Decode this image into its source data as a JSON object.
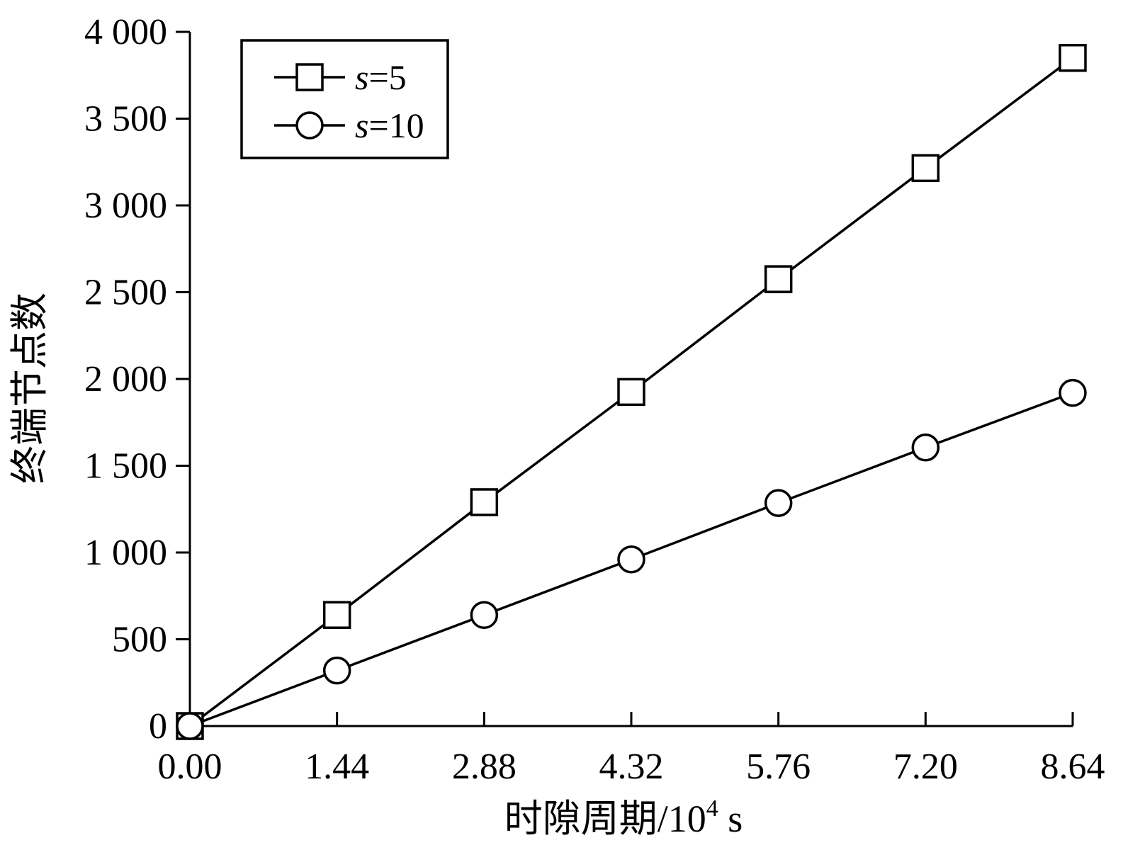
{
  "chart_data": {
    "type": "line",
    "title": "",
    "xlabel": "时隙周期/10",
    "xlabel_sup": "4",
    "xlabel_unit": " s",
    "ylabel": "终端节点数",
    "x": [
      0.0,
      1.44,
      2.88,
      4.32,
      5.76,
      7.2,
      8.64
    ],
    "x_tick_labels": [
      "0.00",
      "1.44",
      "2.88",
      "4.32",
      "5.76",
      "7.20",
      "8.64"
    ],
    "xlim": [
      0,
      8.64
    ],
    "ylim": [
      0,
      4000
    ],
    "y_ticks": [
      0,
      500,
      1000,
      1500,
      2000,
      2500,
      3000,
      3500,
      4000
    ],
    "y_tick_labels": [
      "0",
      "500",
      "1 000",
      "1 500",
      "2 000",
      "2 500",
      "3 000",
      "3 500",
      "4 000"
    ],
    "grid": false,
    "legend_position": "top-left",
    "series": [
      {
        "name": "s=5",
        "name_var": "s",
        "name_rest": "=5",
        "marker": "square",
        "color": "#000000",
        "values": [
          0,
          640,
          1290,
          1925,
          2575,
          3215,
          3850
        ]
      },
      {
        "name": "s=10",
        "name_var": "s",
        "name_rest": "=10",
        "marker": "circle",
        "color": "#000000",
        "values": [
          0,
          320,
          640,
          960,
          1285,
          1605,
          1920
        ]
      }
    ]
  }
}
